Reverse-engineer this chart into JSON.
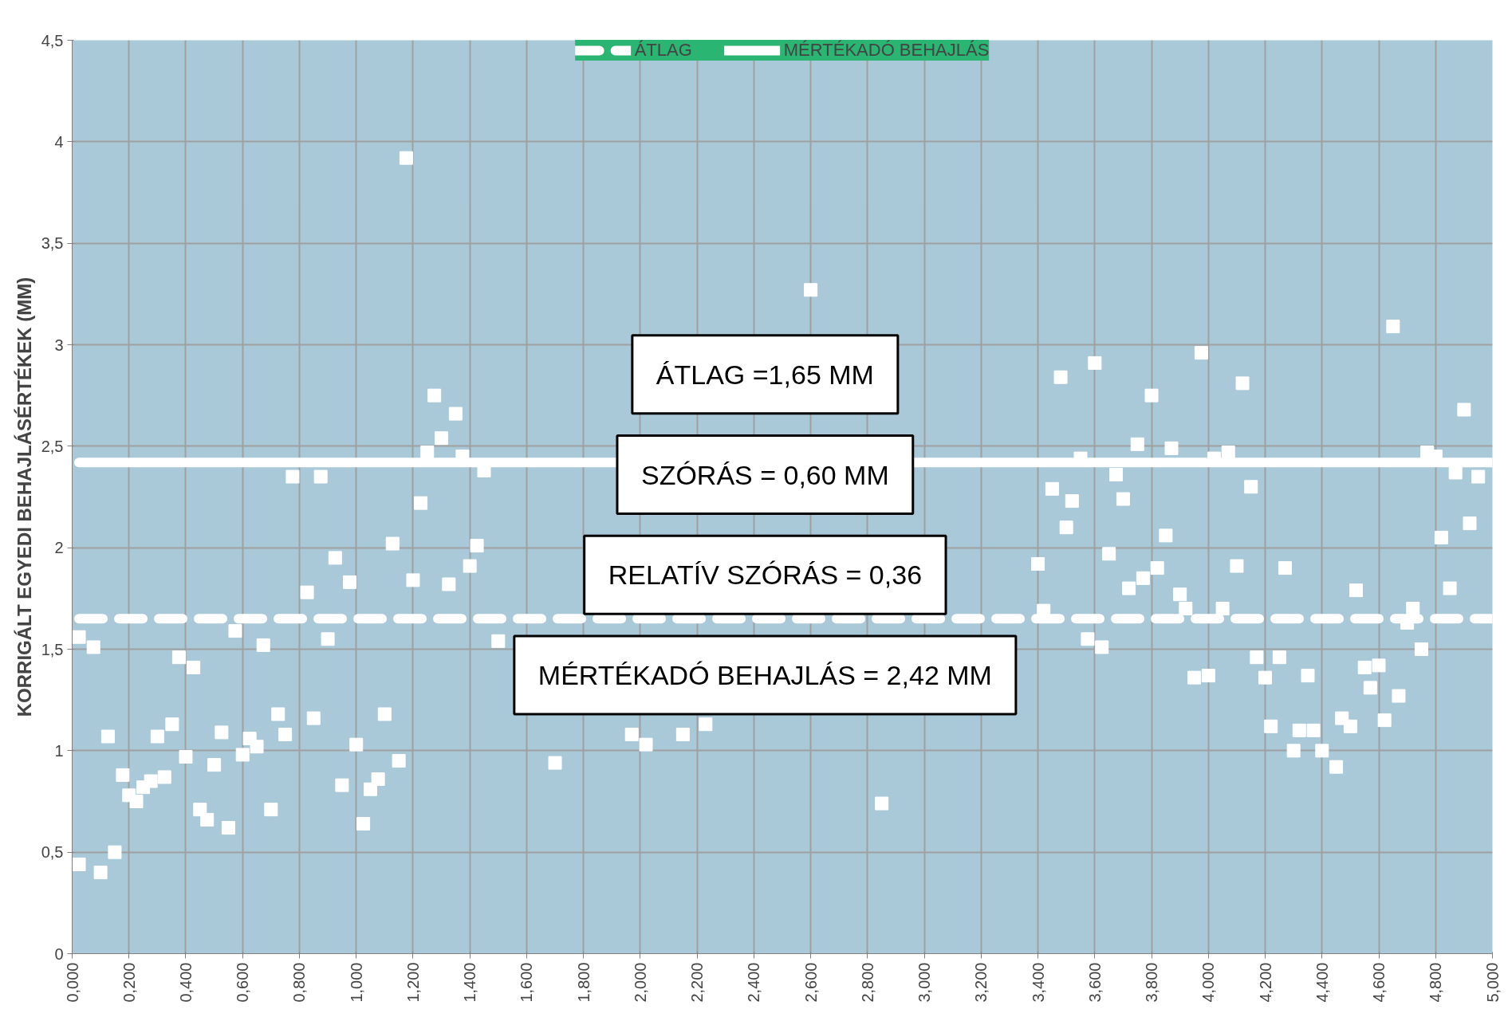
{
  "chart_data": {
    "type": "scatter",
    "ylabel": "KORRIGÁLT EGYEDI BEHAJLÁSÉRTÉKEK (MM)",
    "annotations": [
      "ÁTLAG =1,65 MM",
      "SZÓRÁS = 0,60 MM",
      "RELATÍV SZÓRÁS = 0,36",
      "MÉRTÉKADÓ BEHAJLÁS = 2,42 MM"
    ],
    "xlim": [
      0,
      5
    ],
    "ylim": [
      0,
      4.5
    ],
    "xticks": [
      {
        "value": 0,
        "label": "0,000"
      },
      {
        "value": 0.2,
        "label": "0,200"
      },
      {
        "value": 0.4,
        "label": "0,400"
      },
      {
        "value": 0.6,
        "label": "0,600"
      },
      {
        "value": 0.8,
        "label": "0,800"
      },
      {
        "value": 1.0,
        "label": "1,000"
      },
      {
        "value": 1.2,
        "label": "1,200"
      },
      {
        "value": 1.4,
        "label": "1,400"
      },
      {
        "value": 1.6,
        "label": "1,600"
      },
      {
        "value": 1.8,
        "label": "1,800"
      },
      {
        "value": 2.0,
        "label": "2,000"
      },
      {
        "value": 2.2,
        "label": "2,200"
      },
      {
        "value": 2.4,
        "label": "2,400"
      },
      {
        "value": 2.6,
        "label": "2,600"
      },
      {
        "value": 2.8,
        "label": "2,800"
      },
      {
        "value": 3.0,
        "label": "3,000"
      },
      {
        "value": 3.2,
        "label": "3,200"
      },
      {
        "value": 3.4,
        "label": "3,400"
      },
      {
        "value": 3.6,
        "label": "3,600"
      },
      {
        "value": 3.8,
        "label": "3,800"
      },
      {
        "value": 4.0,
        "label": "4,000"
      },
      {
        "value": 4.2,
        "label": "4,200"
      },
      {
        "value": 4.4,
        "label": "4,400"
      },
      {
        "value": 4.6,
        "label": "4,600"
      },
      {
        "value": 4.8,
        "label": "4,800"
      },
      {
        "value": 5.0,
        "label": "5,000"
      }
    ],
    "yticks": [
      0,
      {
        "value": 0.5,
        "label": "0,5"
      },
      1,
      {
        "value": 1.5,
        "label": "1,5"
      },
      2,
      {
        "value": 2.5,
        "label": "2,5"
      },
      3,
      {
        "value": 3.5,
        "label": "3,5"
      },
      4,
      {
        "value": 4.5,
        "label": "4,5"
      }
    ],
    "grid": true,
    "legend": "top",
    "series": [
      {
        "marker": "square",
        "color": "#ffffff",
        "x": [
          0.024,
          0.024,
          0.075,
          0.1,
          0.126,
          0.15,
          0.178,
          0.2,
          0.226,
          0.25,
          0.277,
          0.3,
          0.325,
          0.352,
          0.376,
          0.4,
          0.427,
          0.45,
          0.475,
          0.5,
          0.526,
          0.55,
          0.574,
          0.6,
          0.625,
          0.65,
          0.673,
          0.7,
          0.725,
          0.75,
          0.776,
          0.827,
          0.85,
          0.875,
          0.9,
          0.926,
          0.95,
          0.977,
          1.0,
          1.025,
          1.05,
          1.077,
          1.1,
          1.128,
          1.15,
          1.176,
          1.2,
          1.227,
          1.25,
          1.275,
          1.3,
          1.326,
          1.35,
          1.374,
          1.4,
          1.425,
          1.45,
          1.5,
          1.7,
          1.97,
          2.02,
          2.15,
          2.23,
          2.6,
          2.85,
          3.4,
          3.42,
          3.45,
          3.48,
          3.5,
          3.52,
          3.55,
          3.575,
          3.6,
          3.625,
          3.65,
          3.675,
          3.7,
          3.72,
          3.75,
          3.77,
          3.8,
          3.82,
          3.85,
          3.87,
          3.9,
          3.92,
          3.95,
          3.975,
          4.0,
          4.02,
          4.05,
          4.07,
          4.1,
          4.12,
          4.15,
          4.17,
          4.2,
          4.22,
          4.25,
          4.27,
          4.3,
          4.32,
          4.35,
          4.37,
          4.4,
          4.45,
          4.47,
          4.5,
          4.52,
          4.55,
          4.57,
          4.6,
          4.62,
          4.65,
          4.67,
          4.7,
          4.72,
          4.75,
          4.77,
          4.8,
          4.82,
          4.85,
          4.87,
          4.9,
          4.92,
          4.95
        ],
        "values": [
          1.56,
          0.44,
          1.51,
          0.4,
          1.07,
          0.5,
          0.88,
          0.78,
          0.75,
          0.82,
          0.85,
          1.07,
          0.87,
          1.13,
          1.46,
          0.97,
          1.41,
          0.71,
          0.66,
          0.93,
          1.09,
          0.62,
          1.59,
          0.98,
          1.06,
          1.02,
          1.52,
          0.71,
          1.18,
          1.08,
          2.35,
          1.78,
          1.16,
          2.35,
          1.55,
          1.95,
          0.83,
          1.83,
          1.03,
          0.64,
          0.81,
          0.86,
          1.18,
          2.02,
          0.95,
          3.92,
          1.84,
          2.22,
          2.47,
          2.75,
          2.54,
          1.82,
          2.66,
          2.45,
          1.91,
          2.01,
          2.38,
          1.54,
          0.94,
          1.08,
          1.03,
          1.08,
          1.13,
          3.27,
          0.74,
          1.92,
          1.69,
          2.29,
          2.84,
          2.1,
          2.23,
          2.44,
          1.55,
          2.91,
          1.51,
          1.97,
          2.36,
          2.24,
          1.8,
          2.51,
          1.85,
          2.75,
          1.9,
          2.06,
          2.49,
          1.77,
          1.7,
          1.36,
          2.96,
          1.37,
          2.44,
          1.7,
          2.47,
          1.91,
          2.81,
          2.3,
          1.46,
          1.36,
          1.12,
          1.46,
          1.9,
          1.0,
          1.1,
          1.37,
          1.1,
          1.0,
          0.92,
          1.16,
          1.12,
          1.79,
          1.41,
          1.31,
          1.42,
          1.15,
          3.09,
          1.27,
          1.63,
          1.7,
          1.5,
          2.47,
          2.45,
          2.05,
          1.8,
          2.37,
          2.68,
          2.12,
          2.35
        ]
      },
      {
        "type": "line",
        "name": "ÁTLAG",
        "color": "#ffffff",
        "line_style": "dashed",
        "x": [
          0.024,
          5
        ],
        "values": [
          1.65,
          1.65
        ]
      },
      {
        "type": "line",
        "name": "MÉRTÉKADÓ BEHAJLÁS",
        "color": "#ffffff",
        "line_style": "solid",
        "x": [
          0.024,
          5
        ],
        "values": [
          2.42,
          2.42
        ]
      }
    ]
  }
}
